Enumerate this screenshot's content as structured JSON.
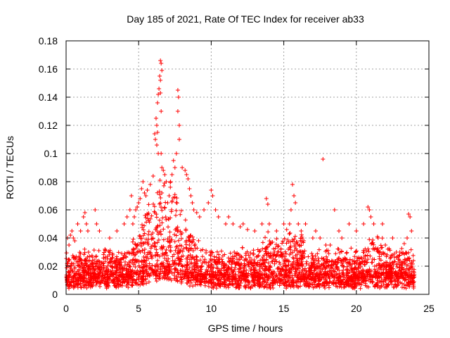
{
  "chart_data": {
    "type": "scatter",
    "title": "Day 185 of 2021, Rate Of TEC Index for receiver ab33",
    "xlabel": "GPS time / hours",
    "ylabel": "ROTI / TECUs",
    "xlim": [
      0,
      25
    ],
    "ylim": [
      0,
      0.18
    ],
    "xticks": [
      "0",
      "5",
      "10",
      "15",
      "20",
      "25"
    ],
    "yticks": [
      "0",
      "0.02",
      "0.04",
      "0.06",
      "0.08",
      "0.1",
      "0.12",
      "0.14",
      "0.16",
      "0.18"
    ],
    "grid": true,
    "marker": "plus",
    "color": "#ff0000",
    "series": [
      {
        "x": [
          6.5,
          6.55,
          6.6,
          6.45,
          6.5,
          6.4,
          6.35,
          6.5,
          6.3,
          6.55,
          6.2,
          6.25,
          6.3,
          6.1,
          6.15,
          6.25,
          6.35,
          6.55,
          6.6,
          6.7,
          6.8,
          6.9,
          6.0,
          5.8,
          5.6,
          5.5,
          5.3,
          5.4,
          5.2,
          5.1,
          5.0,
          4.9,
          4.8,
          4.7,
          4.6,
          4.5,
          7.7,
          7.75,
          7.8,
          7.7,
          7.8,
          7.6,
          7.5,
          7.4,
          7.3,
          7.2,
          7.1,
          7.0,
          8.0,
          8.2,
          8.3,
          8.4,
          8.5,
          8.6,
          8.7,
          8.8,
          9.0,
          9.2,
          9.5,
          9.8,
          10.0,
          10.1,
          10.3,
          10.5,
          11.0,
          11.2,
          11.5,
          12.0,
          12.2,
          12.5,
          13.0,
          13.5,
          13.8,
          13.9,
          14.0,
          14.5,
          15.0,
          15.2,
          15.4,
          15.5,
          15.6,
          15.7,
          15.8,
          16.0,
          16.2,
          16.5,
          17.0,
          17.2,
          17.5,
          17.7,
          17.9,
          18.2,
          18.5,
          18.8,
          19.0,
          19.5,
          20.0,
          20.5,
          20.8,
          20.9,
          21.0,
          21.2,
          21.5,
          21.8,
          22.0,
          22.5,
          23.0,
          23.3,
          23.5,
          23.6,
          23.7,
          23.8,
          1.2,
          1.3,
          1.4,
          1.5,
          2.0,
          2.1,
          2.3,
          0.3,
          0.4,
          0.5,
          0.6,
          0.2,
          0.1,
          3.0,
          3.5,
          4.0,
          4.2,
          4.4,
          0.8,
          1.0
        ],
        "y": [
          0.166,
          0.164,
          0.159,
          0.155,
          0.152,
          0.146,
          0.142,
          0.143,
          0.136,
          0.13,
          0.125,
          0.12,
          0.115,
          0.114,
          0.11,
          0.106,
          0.1,
          0.1,
          0.09,
          0.088,
          0.085,
          0.08,
          0.084,
          0.078,
          0.074,
          0.07,
          0.08,
          0.072,
          0.075,
          0.068,
          0.065,
          0.062,
          0.06,
          0.055,
          0.05,
          0.07,
          0.145,
          0.14,
          0.12,
          0.13,
          0.11,
          0.1,
          0.09,
          0.095,
          0.085,
          0.08,
          0.07,
          0.065,
          0.09,
          0.088,
          0.085,
          0.082,
          0.075,
          0.07,
          0.065,
          0.06,
          0.058,
          0.055,
          0.06,
          0.065,
          0.074,
          0.07,
          0.06,
          0.055,
          0.05,
          0.055,
          0.05,
          0.048,
          0.05,
          0.046,
          0.045,
          0.05,
          0.068,
          0.064,
          0.05,
          0.045,
          0.05,
          0.046,
          0.05,
          0.06,
          0.078,
          0.07,
          0.065,
          0.05,
          0.045,
          0.05,
          0.04,
          0.045,
          0.04,
          0.096,
          0.035,
          0.035,
          0.06,
          0.045,
          0.04,
          0.05,
          0.045,
          0.05,
          0.062,
          0.06,
          0.055,
          0.05,
          0.04,
          0.05,
          0.035,
          0.04,
          0.03,
          0.036,
          0.04,
          0.057,
          0.055,
          0.045,
          0.055,
          0.058,
          0.05,
          0.045,
          0.06,
          0.05,
          0.045,
          0.042,
          0.045,
          0.04,
          0.038,
          0.035,
          0.04,
          0.04,
          0.045,
          0.05,
          0.055,
          0.06,
          0.05,
          0.045
        ]
      }
    ]
  }
}
